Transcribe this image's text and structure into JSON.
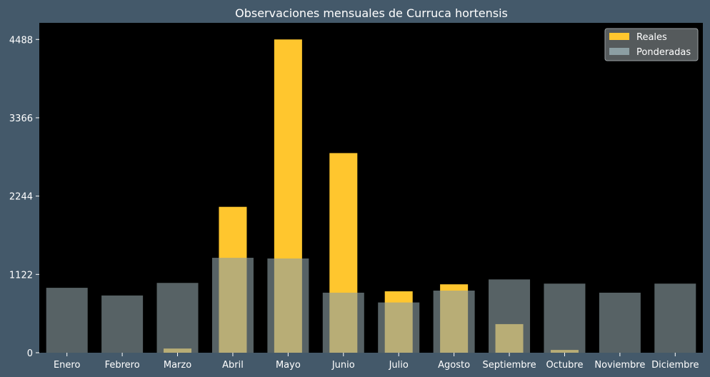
{
  "chart_data": {
    "type": "bar",
    "title": "Observaciones mensuales de Curruca hortensis",
    "xlabel": "",
    "ylabel": "",
    "categories": [
      "Enero",
      "Febrero",
      "Marzo",
      "Abril",
      "Mayo",
      "Junio",
      "Julio",
      "Agosto",
      "Septiembre",
      "Octubre",
      "Noviembre",
      "Diciembre"
    ],
    "series": [
      {
        "name": "Reales",
        "color": "#ffc62e",
        "values": [
          0,
          0,
          60,
          2090,
          4488,
          2860,
          880,
          980,
          410,
          40,
          0,
          0
        ]
      },
      {
        "name": "Ponderadas",
        "color": "#8c9ea3",
        "values": [
          930,
          820,
          1000,
          1360,
          1350,
          860,
          720,
          890,
          1050,
          990,
          860,
          990
        ]
      }
    ],
    "yticks": [
      0,
      1122,
      2244,
      3366,
      4488
    ],
    "ylim": [
      0,
      4726
    ],
    "grid": false,
    "legend_position": "upper right",
    "background_color": "#000000",
    "figure_color": "#44596a"
  }
}
